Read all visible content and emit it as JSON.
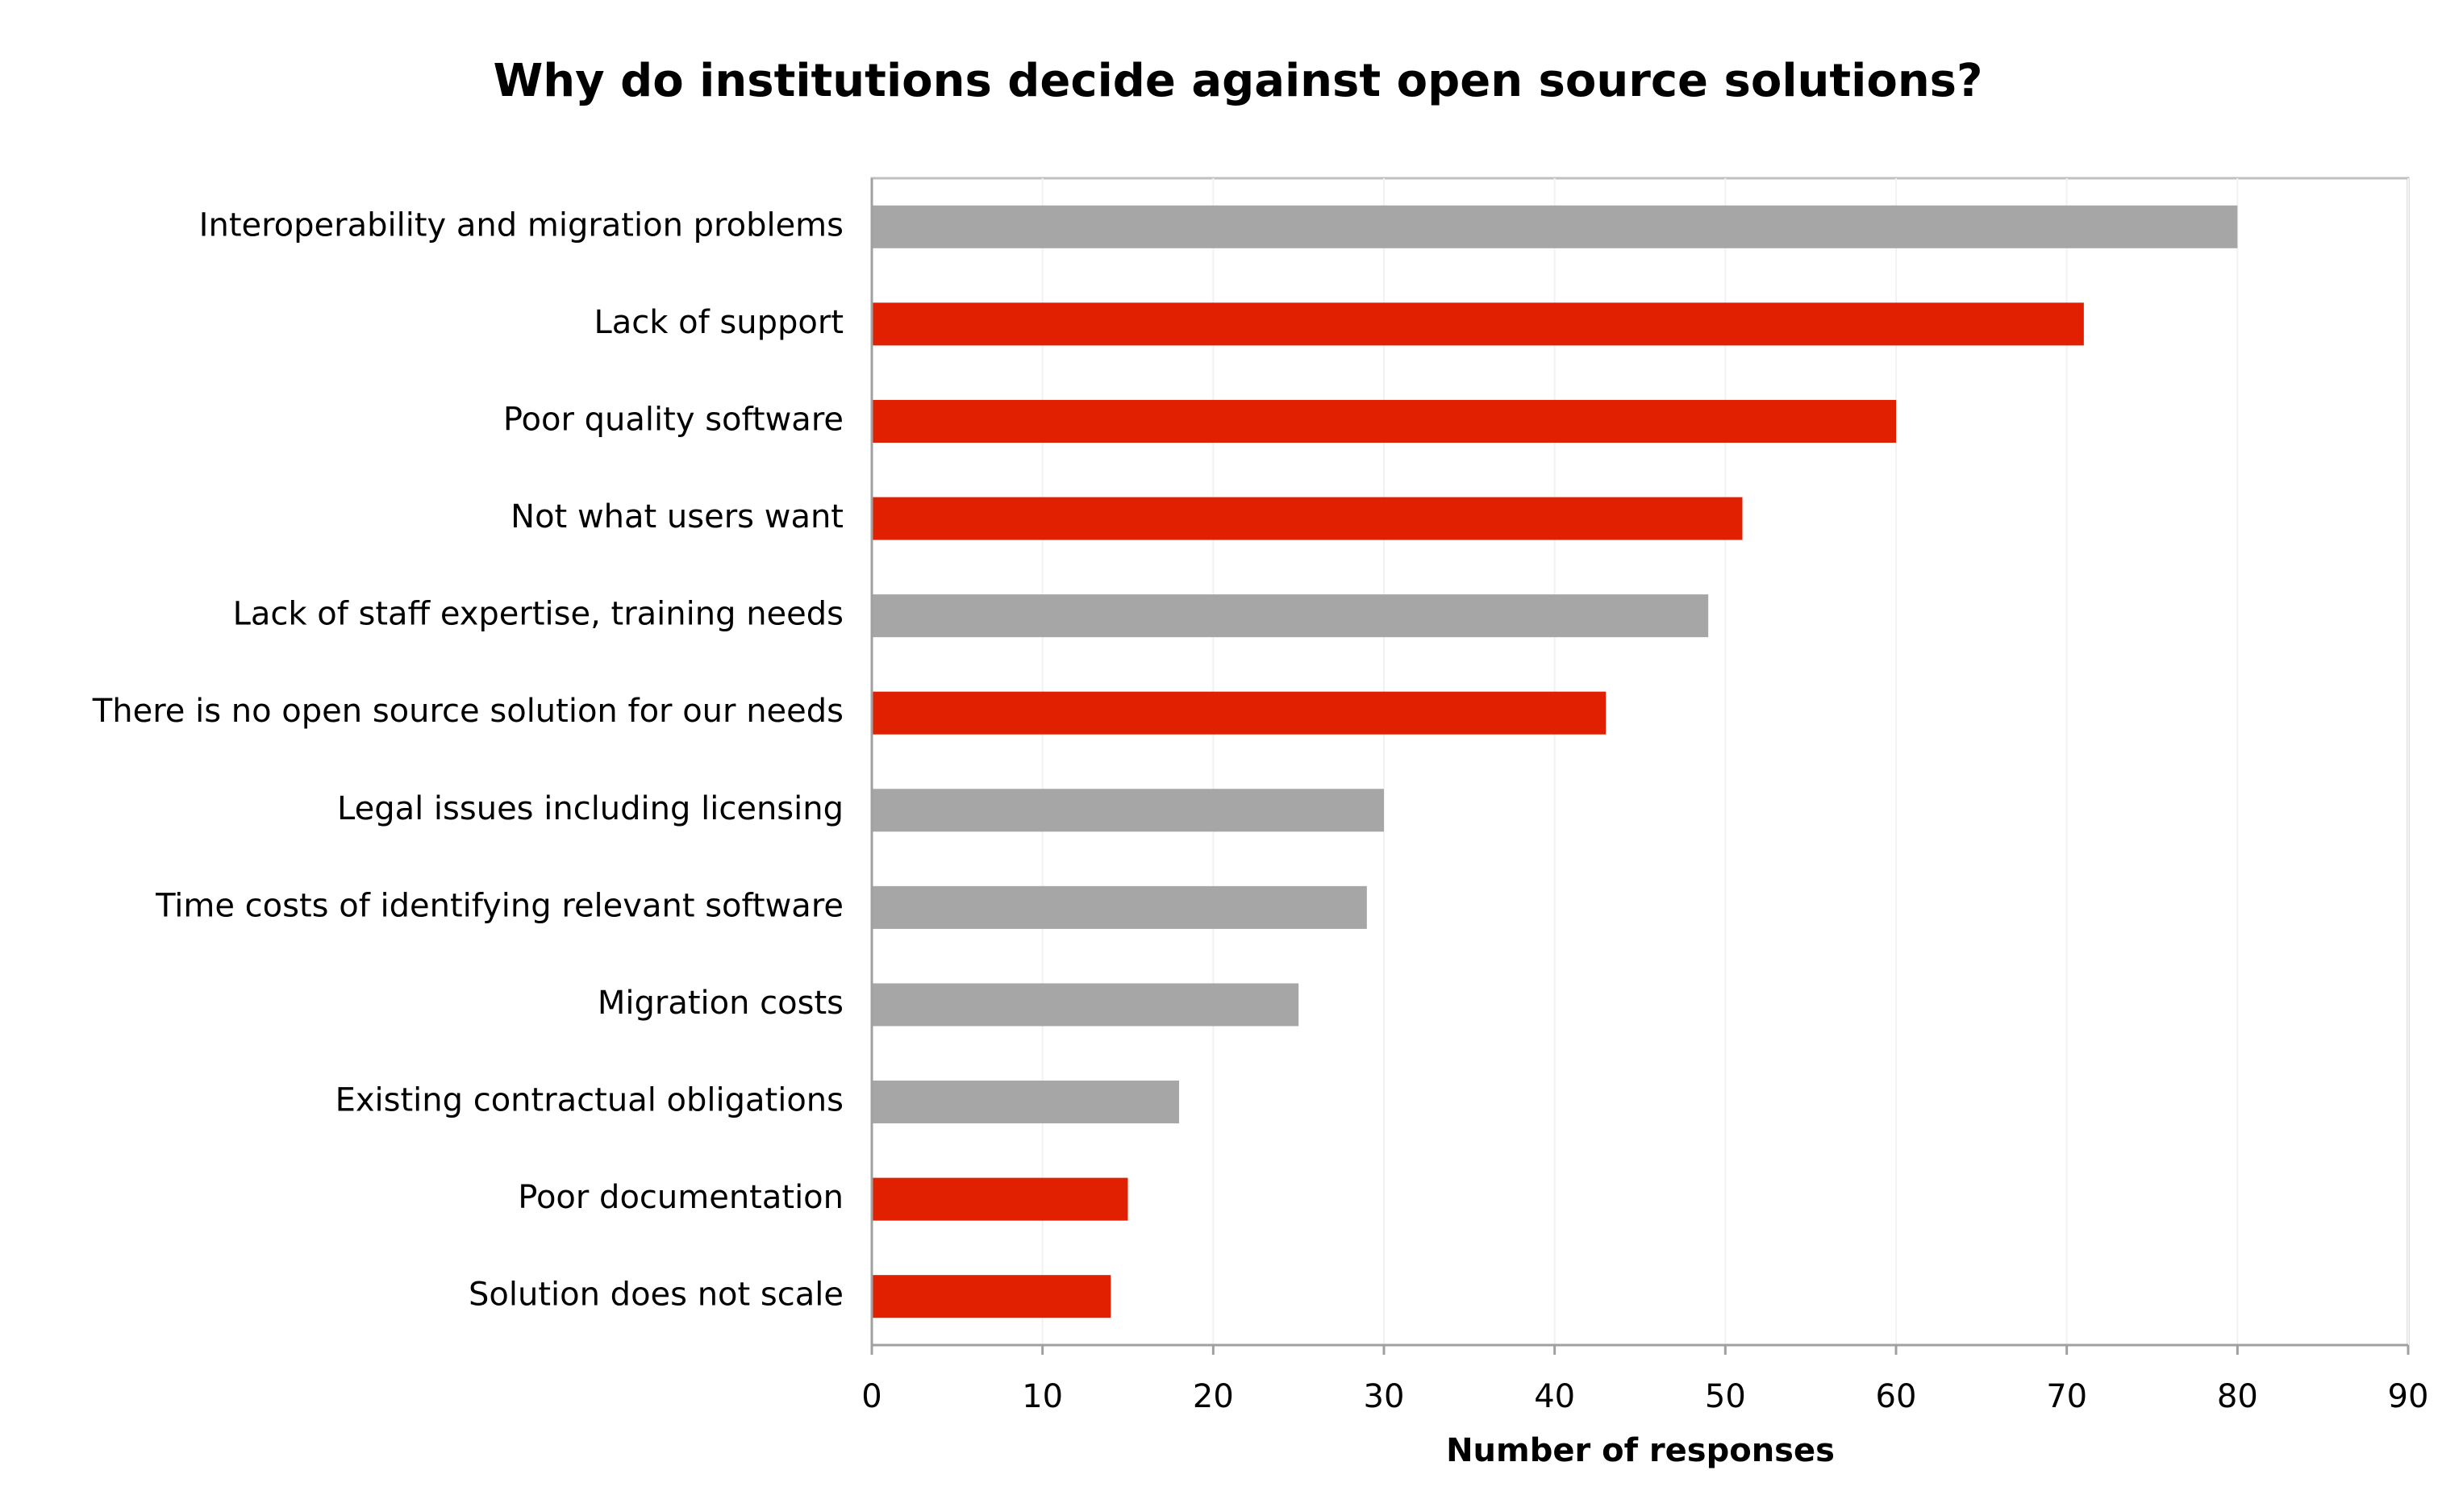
{
  "chart_data": {
    "type": "hbar",
    "title": "Why do institutions decide against open source solutions?",
    "x_label": "Number of responses",
    "categories": [
      "Interoperability and migration problems",
      "Lack of support",
      "Poor quality software",
      "Not what users want",
      "Lack of staff expertise, training needs",
      "There is no open source solution for our needs",
      "Legal issues including licensing",
      "Time costs of identifying relevant software",
      "Migration costs",
      "Existing contractual obligations",
      "Poor documentation",
      "Solution does not scale"
    ],
    "values": [
      80,
      71,
      60,
      51,
      49,
      43,
      30,
      29,
      25,
      18,
      15,
      14
    ],
    "colors": [
      "#a6a6a6",
      "#e02000",
      "#e02000",
      "#e02000",
      "#a6a6a6",
      "#e02000",
      "#a6a6a6",
      "#a6a6a6",
      "#a6a6a6",
      "#a6a6a6",
      "#e02000",
      "#e02000"
    ],
    "xlim": [
      0,
      90
    ],
    "xticks": [
      0,
      10,
      20,
      30,
      40,
      50,
      60,
      70,
      80,
      90
    ],
    "grid": true
  }
}
